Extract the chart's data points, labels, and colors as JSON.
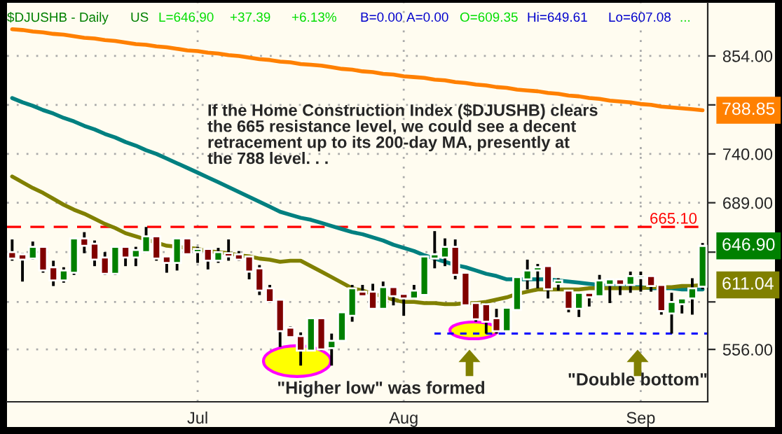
{
  "chart_data": {
    "type": "candlestick",
    "title": "$DJUSHB - Daily",
    "categories": [
      null,
      null,
      null,
      null,
      null,
      null,
      null,
      null,
      null,
      null,
      null,
      null,
      null,
      null,
      null,
      null,
      null,
      null,
      "Jul",
      null,
      null,
      null,
      null,
      null,
      null,
      null,
      null,
      null,
      null,
      null,
      null,
      null,
      null,
      null,
      null,
      null,
      null,
      null,
      "Aug",
      null,
      null,
      null,
      null,
      null,
      null,
      null,
      null,
      null,
      null,
      null,
      null,
      null,
      null,
      null,
      null,
      null,
      null,
      null,
      null,
      null,
      null,
      "Sep",
      null,
      null,
      null,
      null,
      null,
      null
    ],
    "ohlc": [
      [
        641,
        653,
        633,
        635
      ],
      [
        639,
        640,
        614,
        634
      ],
      [
        635,
        651,
        634,
        646
      ],
      [
        646,
        646,
        622,
        624
      ],
      [
        627,
        633,
        610,
        615
      ],
      [
        615,
        627,
        613,
        624
      ],
      [
        622,
        654,
        620,
        654
      ],
      [
        654,
        660,
        640,
        647
      ],
      [
        649,
        652,
        628,
        634
      ],
      [
        636,
        641,
        620,
        621
      ],
      [
        621,
        646,
        620,
        646
      ],
      [
        646,
        646,
        628,
        636
      ],
      [
        636,
        646,
        628,
        643
      ],
      [
        641,
        665,
        641,
        656
      ],
      [
        656,
        656,
        633,
        635
      ],
      [
        637,
        637,
        622,
        631
      ],
      [
        631,
        654,
        624,
        654
      ],
      [
        654,
        654,
        639,
        639
      ],
      [
        641,
        646,
        631,
        644
      ],
      [
        644,
        644,
        625,
        633
      ],
      [
        633,
        645,
        631,
        641
      ],
      [
        640,
        653,
        633,
        637
      ],
      [
        639,
        642,
        633,
        634
      ],
      [
        637,
        637,
        616,
        623
      ],
      [
        626,
        629,
        602,
        606
      ],
      [
        608,
        611,
        595,
        596
      ],
      [
        598,
        598,
        558,
        571
      ],
      [
        574,
        575,
        566,
        566
      ],
      [
        567,
        570,
        543,
        555
      ],
      [
        555,
        582,
        555,
        582
      ],
      [
        582,
        582,
        555,
        556
      ],
      [
        557,
        569,
        543,
        563
      ],
      [
        563,
        587,
        563,
        587
      ],
      [
        584,
        611,
        579,
        608
      ],
      [
        605,
        611,
        601,
        601
      ],
      [
        605,
        612,
        590,
        590
      ],
      [
        590,
        614,
        590,
        609
      ],
      [
        609,
        609,
        593,
        601
      ],
      [
        603,
        603,
        584,
        599
      ],
      [
        599,
        611,
        599,
        606
      ],
      [
        602,
        637,
        602,
        637
      ],
      [
        635,
        661,
        626,
        639
      ],
      [
        636,
        654,
        628,
        646
      ],
      [
        646,
        653,
        616,
        620
      ],
      [
        622,
        622,
        593,
        593
      ],
      [
        595,
        595,
        579,
        581
      ],
      [
        594,
        595,
        569,
        579
      ],
      [
        582,
        590,
        569,
        571
      ],
      [
        571,
        591,
        571,
        591
      ],
      [
        589,
        618,
        589,
        618
      ],
      [
        616,
        634,
        607,
        624
      ],
      [
        624,
        630,
        608,
        627
      ],
      [
        628,
        628,
        599,
        607
      ],
      [
        612,
        617,
        606,
        615
      ],
      [
        606,
        606,
        587,
        590
      ],
      [
        590,
        604,
        583,
        604
      ],
      [
        604,
        604,
        592,
        600
      ],
      [
        601,
        620,
        601,
        615
      ],
      [
        611,
        616,
        595,
        616
      ],
      [
        616,
        616,
        602,
        611
      ],
      [
        611,
        623,
        604,
        619
      ],
      [
        617,
        623,
        605,
        619
      ],
      [
        619,
        619,
        605,
        610
      ],
      [
        611,
        611,
        585,
        588
      ],
      [
        586,
        604,
        569,
        596
      ],
      [
        594,
        599,
        586,
        599
      ],
      [
        599,
        617,
        585,
        608
      ],
      [
        609.35,
        649.61,
        607.08,
        646.9
      ]
    ],
    "colors": [
      "#800000",
      "#800000",
      "#008000",
      "#800000",
      "#800000",
      "#008000",
      "#008000",
      "#800000",
      "#800000",
      "#800000",
      "#008000",
      "#800000",
      "#008000",
      "#008000",
      "#800000",
      "#800000",
      "#008000",
      "#800000",
      "#008000",
      "#800000",
      "#008000",
      "#800000",
      "#800000",
      "#800000",
      "#800000",
      "#800000",
      "#800000",
      "#800000",
      "#800000",
      "#008000",
      "#800000",
      "#008000",
      "#008000",
      "#008000",
      "#800000",
      "#800000",
      "#008000",
      "#800000",
      "#800000",
      "#008000",
      "#008000",
      "#008000",
      "#008000",
      "#800000",
      "#800000",
      "#800000",
      "#800000",
      "#800000",
      "#008000",
      "#008000",
      "#008000",
      "#008000",
      "#800000",
      "#008000",
      "#800000",
      "#008000",
      "#800000",
      "#008000",
      "#008000",
      "#800000",
      "#008000",
      "#008000",
      "#800000",
      "#800000",
      "#008000",
      "#008000",
      "#008000",
      "#008000"
    ],
    "series": [
      {
        "type": "line",
        "color": "#ff8000",
        "values": [
          888,
          887,
          885,
          884,
          882,
          881,
          879,
          877,
          876,
          874,
          873,
          871,
          869,
          868,
          866,
          865,
          863,
          861,
          860,
          858,
          857,
          855,
          854,
          852,
          850,
          849,
          847,
          846,
          844,
          843,
          842,
          840,
          838,
          837,
          835,
          834,
          832,
          831,
          829,
          828,
          827,
          825,
          824,
          822,
          821,
          819,
          818,
          816,
          815,
          813,
          812,
          811,
          809,
          808,
          806,
          805,
          803,
          802,
          800,
          799,
          798,
          796,
          795,
          793,
          792,
          791,
          790,
          788.85
        ]
      },
      {
        "type": "line",
        "color": "#008080",
        "values": [
          803,
          798,
          794,
          789,
          785,
          780,
          776,
          771,
          767,
          762,
          758,
          753,
          749,
          744,
          740,
          735,
          730,
          725,
          720,
          715,
          710,
          705,
          700,
          695,
          690,
          685,
          680,
          677,
          674,
          672,
          669,
          666,
          663,
          660,
          658,
          655,
          652,
          648,
          645,
          642,
          638,
          635,
          632,
          629,
          627,
          624,
          621,
          619,
          616,
          616,
          616,
          616,
          616,
          615,
          614,
          613,
          612,
          611,
          610,
          610,
          609,
          609,
          608,
          608,
          608,
          607,
          607,
          607
        ]
      },
      {
        "type": "line",
        "color": "#808000",
        "values": [
          716,
          710,
          704,
          699,
          693,
          687,
          682,
          678,
          673,
          668,
          664,
          659,
          656,
          653,
          650,
          647,
          646,
          645,
          644,
          642,
          641,
          640,
          638,
          637,
          635,
          634,
          632,
          633,
          633,
          628,
          623,
          618,
          613,
          608,
          606,
          603,
          601,
          598,
          596,
          596,
          595,
          595,
          594,
          594,
          595,
          595,
          596,
          598,
          600,
          603,
          605,
          607,
          607,
          607,
          607,
          607,
          608,
          608,
          608,
          608,
          608,
          608,
          609,
          609,
          609,
          610,
          610,
          611.04
        ]
      }
    ],
    "log": true,
    "ylim": [
      515,
      923
    ],
    "yticks": [
      {
        "value": 556,
        "label": "556.00"
      },
      {
        "value": 596,
        "label": null
      },
      {
        "value": 641,
        "label": null
      },
      {
        "value": 689,
        "label": "689.00"
      },
      {
        "value": 740,
        "label": "740.00"
      },
      {
        "value": 795,
        "label": null
      },
      {
        "value": 854,
        "label": "854.00"
      }
    ],
    "grid": true,
    "ref_lines": [
      {
        "axis": "y",
        "value": 665.1,
        "label": "665.10",
        "color": "#ff0000",
        "line_style": "dashed"
      },
      {
        "axis": "y",
        "value": 569,
        "color": "#0000ff",
        "line_style": "dashed"
      }
    ],
    "annotations": [
      "US",
      "L=646.90",
      "+37.39",
      "+6.13%",
      "B=0.00",
      "A=0.00",
      "O=609.35",
      "Hi=649.61",
      "Lo=607.08",
      "...",
      "If the Home Construction Index ($DJUSHB) clears\nthe 665 resistance level, we could see a decent\nretracement up to its 200-day MA, presently at\nthe 788 level. . .",
      "\"Higher low\" was formed",
      "\"Double bottom\"",
      "788.85",
      "646.90",
      "611.04"
    ]
  }
}
